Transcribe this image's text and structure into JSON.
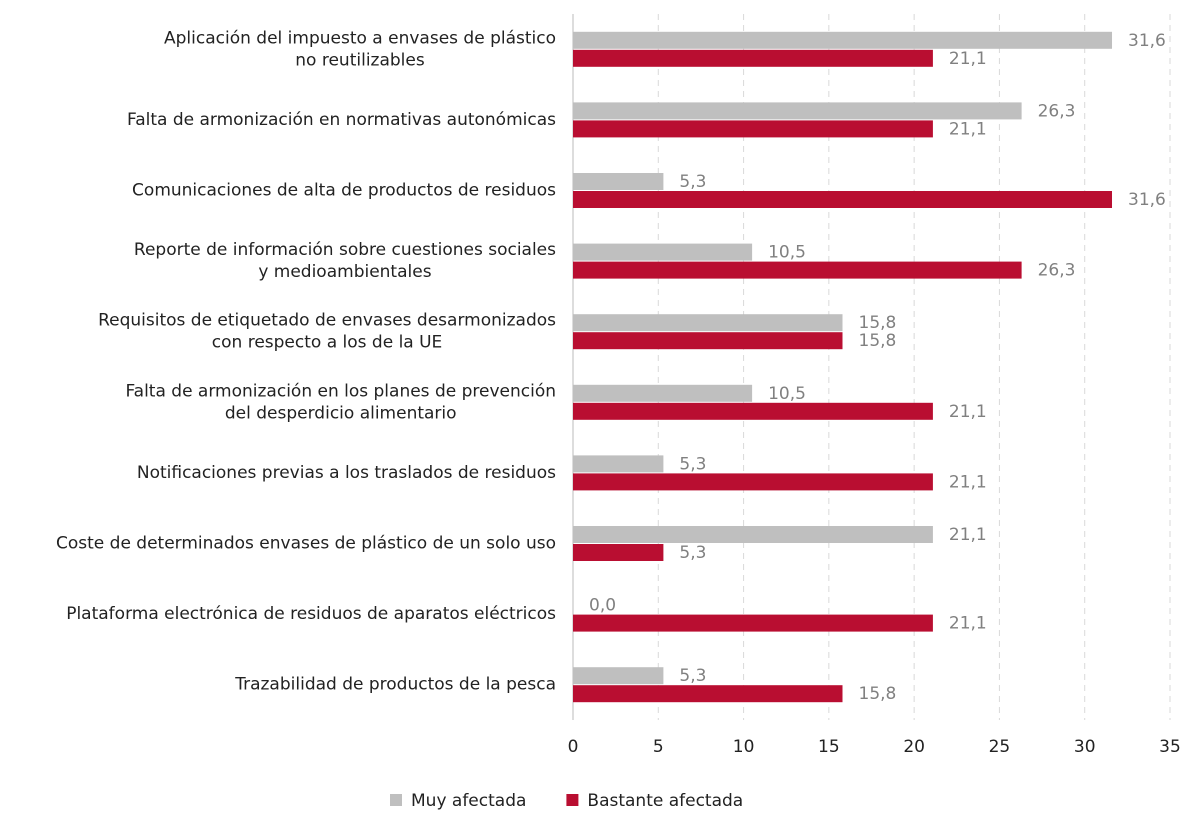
{
  "chart_data": {
    "type": "barh",
    "categories": [
      "Aplicación del impuesto a envases de plástico\nno reutilizables",
      "Falta de armonización en normativas autonómicas",
      "Comunicaciones de alta de productos de residuos",
      "Reporte de información sobre cuestiones sociales\ny medioambientales",
      "Requisitos de etiquetado de envases desarmonizados\ncon respecto a los de la UE",
      "Falta de armonización en los planes de prevención\ndel desperdicio alimentario",
      "Notificaciones previas a los traslados de residuos",
      "Coste de determinados envases de plástico de un solo uso",
      "Plataforma electrónica de residuos de aparatos eléctricos",
      "Trazabilidad de productos de la pesca"
    ],
    "series": [
      {
        "name": "Muy afectada",
        "color": "#bfbfbf",
        "values": [
          31.6,
          26.3,
          5.3,
          10.5,
          15.8,
          10.5,
          5.3,
          21.1,
          0.0,
          5.3
        ],
        "value_labels": [
          "31,6",
          "26,3",
          "5,3",
          "10,5",
          "15,8",
          "10,5",
          "5,3",
          "21,1",
          "0,0",
          "5,3"
        ]
      },
      {
        "name": "Bastante afectada",
        "color": "#b90e31",
        "values": [
          21.1,
          21.1,
          31.6,
          26.3,
          15.8,
          21.1,
          21.1,
          5.3,
          21.1,
          15.8
        ],
        "value_labels": [
          "21,1",
          "21,1",
          "31,6",
          "26,3",
          "15,8",
          "21,1",
          "21,1",
          "5,3",
          "21,1",
          "15,8"
        ]
      }
    ],
    "xlim": [
      0,
      35
    ],
    "xticks": [
      0,
      5,
      10,
      15,
      20,
      25,
      30,
      35
    ],
    "grid": true,
    "legend": "bottom"
  }
}
